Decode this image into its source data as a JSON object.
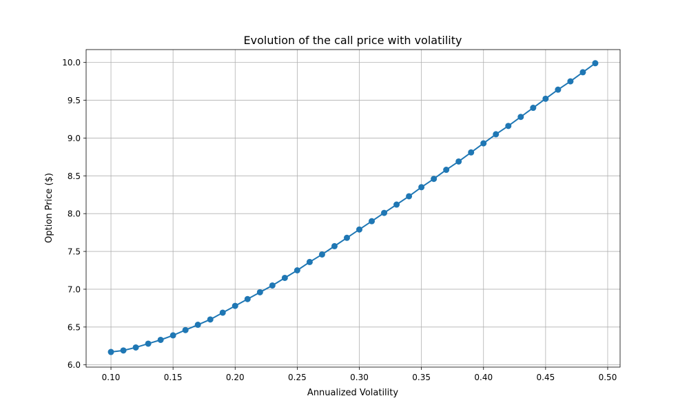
{
  "chart_data": {
    "type": "line",
    "title": "Evolution of the call price with volatility",
    "xlabel": "Annualized Volatility",
    "ylabel": "Option Price ($)",
    "xlim": [
      0.08,
      0.51
    ],
    "ylim": [
      5.97,
      10.17
    ],
    "xticks": [
      0.1,
      0.15,
      0.2,
      0.25,
      0.3,
      0.35,
      0.4,
      0.45,
      0.5
    ],
    "xtick_labels": [
      "0.10",
      "0.15",
      "0.20",
      "0.25",
      "0.30",
      "0.35",
      "0.40",
      "0.45",
      "0.50"
    ],
    "yticks": [
      6.0,
      6.5,
      7.0,
      7.5,
      8.0,
      8.5,
      9.0,
      9.5,
      10.0
    ],
    "ytick_labels": [
      "6.0",
      "6.5",
      "7.0",
      "7.5",
      "8.0",
      "8.5",
      "9.0",
      "9.5",
      "10.0"
    ],
    "grid": true,
    "marker": "circle",
    "series": [
      {
        "color": "#1f77b4",
        "x": [
          0.1,
          0.11,
          0.12,
          0.13,
          0.14,
          0.15,
          0.16,
          0.17,
          0.18,
          0.19,
          0.2,
          0.21,
          0.22,
          0.23,
          0.24,
          0.25,
          0.26,
          0.27,
          0.28,
          0.29,
          0.3,
          0.31,
          0.32,
          0.33,
          0.34,
          0.35,
          0.36,
          0.37,
          0.38,
          0.39,
          0.4,
          0.41,
          0.42,
          0.43,
          0.44,
          0.45,
          0.46,
          0.47,
          0.48,
          0.49
        ],
        "y": [
          6.17,
          6.19,
          6.23,
          6.28,
          6.33,
          6.39,
          6.46,
          6.53,
          6.6,
          6.69,
          6.78,
          6.87,
          6.96,
          7.05,
          7.15,
          7.25,
          7.36,
          7.46,
          7.57,
          7.68,
          7.79,
          7.9,
          8.01,
          8.12,
          8.23,
          8.35,
          8.46,
          8.58,
          8.69,
          8.81,
          8.93,
          9.05,
          9.16,
          9.28,
          9.4,
          9.52,
          9.64,
          9.75,
          9.87,
          9.99
        ]
      }
    ]
  }
}
